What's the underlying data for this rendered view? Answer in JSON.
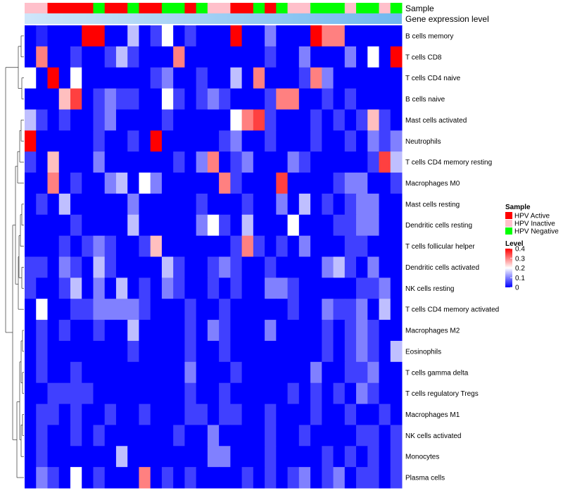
{
  "chart_data": {
    "type": "heatmap",
    "annotation_labels": [
      "Sample",
      "Gene expression level"
    ],
    "sample_legend": {
      "title": "Sample",
      "entries": [
        {
          "label": "HPV Active",
          "color": "#ff0000"
        },
        {
          "label": "HPV Inactive",
          "color": "#ffc0cb"
        },
        {
          "label": "HPV Negative",
          "color": "#00ff00"
        }
      ]
    },
    "level_legend": {
      "title": "Level",
      "ticks": [
        "0.4",
        "0.3",
        "0.2",
        "0.1",
        "0"
      ],
      "min": 0,
      "max": 0.4,
      "low_color": "#0000ff",
      "mid_color": "#ffffff",
      "high_color": "#ff0000"
    },
    "colors": {
      "expression_gradient_start": "#cfe6fa",
      "expression_gradient_end": "#6fb8ef"
    },
    "sample_groups": [
      "I",
      "I",
      "A",
      "A",
      "A",
      "A",
      "N",
      "A",
      "A",
      "N",
      "A",
      "A",
      "N",
      "N",
      "A",
      "N",
      "I",
      "I",
      "A",
      "A",
      "N",
      "A",
      "N",
      "I",
      "I",
      "N",
      "N",
      "N",
      "I",
      "N",
      "N",
      "I",
      "N"
    ],
    "rows": [
      "B cells memory",
      "T cells CD8",
      "T cells CD4 naive",
      "B cells naive",
      "Mast cells activated",
      "Neutrophils",
      "T cells CD4 memory resting",
      "Macrophages M0",
      "Mast cells resting",
      "Dendritic cells resting",
      "T cells follicular helper",
      "Dendritic cells activated",
      "NK cells resting",
      "T cells CD4 memory activated",
      "Macrophages M2",
      "Eosinophils",
      "T cells gamma delta",
      "T cells regulatory  Tregs",
      "Macrophages M1",
      "NK cells activated",
      "Monocytes",
      "Plasma cells"
    ],
    "values": [
      [
        0.0,
        0.03,
        0.0,
        0.0,
        0.0,
        0.4,
        0.4,
        0.0,
        0.0,
        0.15,
        0.0,
        0.05,
        0.2,
        0.0,
        0.05,
        0.0,
        0.0,
        0.0,
        0.4,
        0.0,
        0.0,
        0.1,
        0.0,
        0.0,
        0.0,
        0.4,
        0.3,
        0.3,
        0.0,
        0.0,
        0.0,
        0.0,
        0.0
      ],
      [
        0.0,
        0.3,
        0.0,
        0.0,
        0.05,
        0.0,
        0.0,
        0.05,
        0.15,
        0.05,
        0.0,
        0.0,
        0.0,
        0.3,
        0.0,
        0.0,
        0.0,
        0.0,
        0.0,
        0.0,
        0.0,
        0.05,
        0.0,
        0.0,
        0.1,
        0.0,
        0.0,
        0.0,
        0.1,
        0.0,
        0.2,
        0.0,
        0.4
      ],
      [
        0.2,
        0.0,
        0.4,
        0.0,
        0.2,
        0.0,
        0.0,
        0.0,
        0.0,
        0.0,
        0.0,
        0.05,
        0.1,
        0.0,
        0.0,
        0.05,
        0.0,
        0.0,
        0.15,
        0.0,
        0.3,
        0.0,
        0.0,
        0.0,
        0.05,
        0.3,
        0.1,
        0.0,
        0.0,
        0.0,
        0.0,
        0.0,
        0.0
      ],
      [
        0.0,
        0.0,
        0.0,
        0.25,
        0.35,
        0.0,
        0.05,
        0.1,
        0.05,
        0.05,
        0.0,
        0.0,
        0.2,
        0.05,
        0.0,
        0.05,
        0.1,
        0.05,
        0.0,
        0.0,
        0.0,
        0.05,
        0.3,
        0.3,
        0.0,
        0.0,
        0.05,
        0.0,
        0.05,
        0.0,
        0.0,
        0.0,
        0.0
      ],
      [
        0.15,
        0.05,
        0.0,
        0.05,
        0.0,
        0.0,
        0.05,
        0.1,
        0.0,
        0.0,
        0.0,
        0.0,
        0.05,
        0.0,
        0.0,
        0.0,
        0.0,
        0.0,
        0.2,
        0.3,
        0.35,
        0.05,
        0.0,
        0.0,
        0.0,
        0.05,
        0.0,
        0.05,
        0.0,
        0.05,
        0.25,
        0.05,
        0.0
      ],
      [
        0.4,
        0.0,
        0.0,
        0.0,
        0.0,
        0.0,
        0.05,
        0.0,
        0.0,
        0.05,
        0.0,
        0.4,
        0.0,
        0.0,
        0.0,
        0.0,
        0.0,
        0.05,
        0.1,
        0.0,
        0.0,
        0.05,
        0.0,
        0.0,
        0.0,
        0.05,
        0.0,
        0.0,
        0.05,
        0.0,
        0.1,
        0.05,
        0.1
      ],
      [
        0.05,
        0.0,
        0.25,
        0.0,
        0.0,
        0.0,
        0.1,
        0.0,
        0.0,
        0.0,
        0.0,
        0.0,
        0.0,
        0.05,
        0.0,
        0.1,
        0.3,
        0.0,
        0.05,
        0.1,
        0.0,
        0.0,
        0.0,
        0.1,
        0.05,
        0.0,
        0.0,
        0.0,
        0.0,
        0.0,
        0.05,
        0.35,
        0.15
      ],
      [
        0.0,
        0.0,
        0.3,
        0.0,
        0.05,
        0.0,
        0.0,
        0.1,
        0.15,
        0.0,
        0.2,
        0.1,
        0.0,
        0.0,
        0.0,
        0.0,
        0.0,
        0.3,
        0.05,
        0.0,
        0.0,
        0.0,
        0.35,
        0.0,
        0.0,
        0.0,
        0.0,
        0.05,
        0.1,
        0.1,
        0.0,
        0.0,
        0.05
      ],
      [
        0.0,
        0.05,
        0.0,
        0.15,
        0.0,
        0.0,
        0.0,
        0.0,
        0.0,
        0.1,
        0.0,
        0.0,
        0.0,
        0.0,
        0.0,
        0.05,
        0.0,
        0.0,
        0.0,
        0.05,
        0.0,
        0.0,
        0.1,
        0.0,
        0.15,
        0.0,
        0.05,
        0.0,
        0.05,
        0.1,
        0.1,
        0.0,
        0.0
      ],
      [
        0.0,
        0.0,
        0.0,
        0.0,
        0.05,
        0.0,
        0.0,
        0.0,
        0.0,
        0.15,
        0.0,
        0.0,
        0.0,
        0.0,
        0.0,
        0.1,
        0.2,
        0.05,
        0.0,
        0.15,
        0.0,
        0.0,
        0.0,
        0.2,
        0.0,
        0.0,
        0.0,
        0.05,
        0.05,
        0.1,
        0.1,
        0.0,
        0.0
      ],
      [
        0.0,
        0.0,
        0.0,
        0.05,
        0.0,
        0.05,
        0.1,
        0.05,
        0.0,
        0.0,
        0.05,
        0.25,
        0.0,
        0.0,
        0.0,
        0.0,
        0.0,
        0.0,
        0.05,
        0.3,
        0.05,
        0.0,
        0.05,
        0.0,
        0.1,
        0.0,
        0.0,
        0.0,
        0.05,
        0.05,
        0.0,
        0.0,
        0.0
      ],
      [
        0.05,
        0.05,
        0.0,
        0.1,
        0.05,
        0.0,
        0.15,
        0.05,
        0.0,
        0.0,
        0.0,
        0.0,
        0.15,
        0.05,
        0.0,
        0.0,
        0.05,
        0.1,
        0.05,
        0.0,
        0.0,
        0.05,
        0.0,
        0.0,
        0.0,
        0.0,
        0.1,
        0.15,
        0.05,
        0.0,
        0.1,
        0.0,
        0.0
      ],
      [
        0.05,
        0.0,
        0.0,
        0.05,
        0.15,
        0.0,
        0.1,
        0.0,
        0.15,
        0.0,
        0.05,
        0.0,
        0.1,
        0.05,
        0.0,
        0.0,
        0.05,
        0.0,
        0.05,
        0.0,
        0.0,
        0.1,
        0.1,
        0.05,
        0.0,
        0.0,
        0.0,
        0.0,
        0.0,
        0.05,
        0.05,
        0.1,
        0.0
      ],
      [
        0.0,
        0.2,
        0.0,
        0.0,
        0.05,
        0.05,
        0.1,
        0.1,
        0.1,
        0.1,
        0.05,
        0.0,
        0.0,
        0.0,
        0.05,
        0.0,
        0.0,
        0.05,
        0.0,
        0.0,
        0.0,
        0.0,
        0.0,
        0.05,
        0.0,
        0.0,
        0.1,
        0.05,
        0.05,
        0.1,
        0.0,
        0.15,
        0.0
      ],
      [
        0.0,
        0.05,
        0.0,
        0.05,
        0.0,
        0.0,
        0.05,
        0.0,
        0.0,
        0.15,
        0.0,
        0.0,
        0.0,
        0.0,
        0.05,
        0.0,
        0.1,
        0.05,
        0.0,
        0.0,
        0.0,
        0.1,
        0.0,
        0.0,
        0.0,
        0.0,
        0.05,
        0.0,
        0.05,
        0.1,
        0.05,
        0.0,
        0.0
      ],
      [
        0.0,
        0.05,
        0.0,
        0.0,
        0.0,
        0.0,
        0.0,
        0.0,
        0.0,
        0.05,
        0.0,
        0.0,
        0.0,
        0.0,
        0.05,
        0.0,
        0.0,
        0.05,
        0.0,
        0.0,
        0.0,
        0.0,
        0.0,
        0.0,
        0.0,
        0.0,
        0.05,
        0.0,
        0.05,
        0.1,
        0.05,
        0.0,
        0.15
      ],
      [
        0.0,
        0.05,
        0.0,
        0.0,
        0.05,
        0.0,
        0.0,
        0.0,
        0.0,
        0.0,
        0.0,
        0.0,
        0.0,
        0.0,
        0.1,
        0.0,
        0.0,
        0.0,
        0.05,
        0.0,
        0.0,
        0.0,
        0.0,
        0.0,
        0.0,
        0.1,
        0.0,
        0.0,
        0.05,
        0.05,
        0.1,
        0.0,
        0.0
      ],
      [
        0.0,
        0.0,
        0.05,
        0.05,
        0.05,
        0.05,
        0.0,
        0.0,
        0.0,
        0.0,
        0.0,
        0.0,
        0.0,
        0.0,
        0.05,
        0.0,
        0.0,
        0.05,
        0.0,
        0.0,
        0.0,
        0.0,
        0.0,
        0.05,
        0.0,
        0.05,
        0.0,
        0.05,
        0.0,
        0.1,
        0.05,
        0.0,
        0.0
      ],
      [
        0.0,
        0.05,
        0.05,
        0.0,
        0.05,
        0.0,
        0.0,
        0.05,
        0.0,
        0.0,
        0.05,
        0.0,
        0.0,
        0.0,
        0.05,
        0.05,
        0.0,
        0.05,
        0.05,
        0.0,
        0.0,
        0.05,
        0.0,
        0.0,
        0.0,
        0.05,
        0.0,
        0.0,
        0.05,
        0.0,
        0.0,
        0.05,
        0.0
      ],
      [
        0.0,
        0.05,
        0.0,
        0.0,
        0.05,
        0.0,
        0.05,
        0.0,
        0.0,
        0.0,
        0.0,
        0.0,
        0.0,
        0.05,
        0.0,
        0.0,
        0.1,
        0.0,
        0.0,
        0.0,
        0.0,
        0.05,
        0.0,
        0.0,
        0.05,
        0.0,
        0.0,
        0.0,
        0.0,
        0.05,
        0.05,
        0.0,
        0.05
      ],
      [
        0.0,
        0.05,
        0.0,
        0.0,
        0.0,
        0.0,
        0.0,
        0.0,
        0.15,
        0.0,
        0.0,
        0.0,
        0.0,
        0.0,
        0.0,
        0.0,
        0.1,
        0.1,
        0.0,
        0.0,
        0.0,
        0.05,
        0.0,
        0.0,
        0.0,
        0.0,
        0.05,
        0.0,
        0.05,
        0.0,
        0.05,
        0.0,
        0.05
      ],
      [
        0.0,
        0.1,
        0.05,
        0.0,
        0.2,
        0.0,
        0.05,
        0.0,
        0.0,
        0.0,
        0.3,
        0.0,
        0.05,
        0.0,
        0.05,
        0.0,
        0.0,
        0.0,
        0.0,
        0.05,
        0.0,
        0.05,
        0.0,
        0.05,
        0.1,
        0.0,
        0.05,
        0.1,
        0.0,
        0.05,
        0.05,
        0.0,
        0.05
      ]
    ]
  }
}
